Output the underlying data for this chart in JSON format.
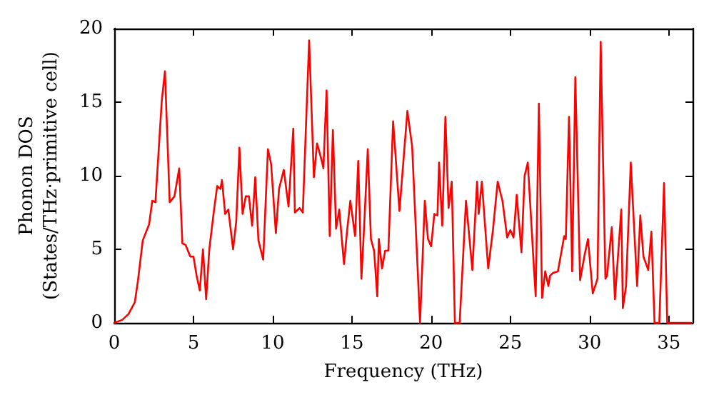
{
  "chart_data": {
    "type": "line",
    "xlabel": "Frequency (THz)",
    "ylabel": "Phonon DOS\n(States/THz·primitive cell)",
    "xlim": [
      0,
      36.5
    ],
    "xticks": [
      0,
      5,
      10,
      15,
      20,
      25,
      30,
      35
    ],
    "ylim": [
      0,
      20
    ],
    "yticks": [
      0,
      5,
      10,
      15,
      20
    ],
    "grid": false,
    "marker": "none",
    "line_style": "solid",
    "series": [
      {
        "color": "#ff0000",
        "x": [
          0,
          0.5,
          0.9,
          1.3,
          1.5,
          1.8,
          2.2,
          2.4,
          2.6,
          3.0,
          3.2,
          3.5,
          3.8,
          4.1,
          4.3,
          4.5,
          4.8,
          5.0,
          5.2,
          5.4,
          5.6,
          5.8,
          6.0,
          6.3,
          6.5,
          6.7,
          6.8,
          7.0,
          7.2,
          7.5,
          7.7,
          7.9,
          8.1,
          8.3,
          8.5,
          8.7,
          8.9,
          9.1,
          9.4,
          9.7,
          9.9,
          10.2,
          10.4,
          10.7,
          11.0,
          11.3,
          11.4,
          11.7,
          11.9,
          12.3,
          12.6,
          12.8,
          13.1,
          13.2,
          13.4,
          13.6,
          13.8,
          14.0,
          14.2,
          14.5,
          14.7,
          14.9,
          15.2,
          15.4,
          15.6,
          15.8,
          16.0,
          16.2,
          16.4,
          16.6,
          16.7,
          16.9,
          17.1,
          17.3,
          17.6,
          18.0,
          18.5,
          18.8,
          19.3,
          19.6,
          19.8,
          20.0,
          20.2,
          20.4,
          20.5,
          20.7,
          20.9,
          21.1,
          21.3,
          21.5,
          21.8,
          22.2,
          22.6,
          22.9,
          23.0,
          23.2,
          23.6,
          23.9,
          24.2,
          24.5,
          24.8,
          25.0,
          25.2,
          25.4,
          25.7,
          25.9,
          26.1,
          26.5,
          26.6,
          26.8,
          27.0,
          27.2,
          27.4,
          27.5,
          27.7,
          28.0,
          28.4,
          28.5,
          28.7,
          28.9,
          29.1,
          29.4,
          29.7,
          29.9,
          30.2,
          30.5,
          30.7,
          31.0,
          31.1,
          31.4,
          31.6,
          32.0,
          32.1,
          32.3,
          32.6,
          33.0,
          33.2,
          33.4,
          33.7,
          33.9,
          34.1,
          34.4,
          34.7,
          34.9,
          36.4
        ],
        "values": [
          0,
          0.2,
          0.6,
          1.4,
          2.9,
          5.6,
          6.7,
          8.3,
          8.2,
          15.1,
          17.1,
          8.2,
          8.6,
          10.5,
          5.4,
          5.3,
          4.5,
          4.5,
          3.2,
          2.2,
          5.0,
          1.6,
          5.0,
          7.7,
          9.3,
          9.1,
          9.7,
          7.4,
          7.7,
          5.0,
          6.9,
          11.9,
          7.4,
          8.6,
          8.6,
          6.6,
          9.9,
          5.6,
          4.3,
          11.8,
          10.8,
          6.1,
          9.1,
          10.4,
          7.9,
          13.2,
          7.5,
          7.8,
          7.5,
          19.2,
          9.9,
          12.2,
          11.0,
          10.5,
          15.8,
          5.9,
          13.1,
          6.4,
          7.7,
          4.0,
          6.3,
          8.3,
          5.9,
          11.0,
          3.0,
          7.2,
          11.8,
          5.7,
          4.9,
          1.8,
          5.7,
          3.7,
          4.9,
          4.9,
          13.7,
          7.6,
          14.4,
          12.0,
          0,
          8.3,
          5.7,
          5.2,
          7.4,
          7.3,
          10.9,
          6.6,
          14.0,
          7.8,
          9.6,
          0,
          0,
          8.3,
          3.6,
          9.6,
          7.4,
          9.6,
          3.7,
          6.3,
          9.6,
          8.3,
          5.8,
          6.3,
          5.8,
          8.7,
          4.8,
          10.0,
          10.9,
          3.5,
          1.8,
          14.9,
          1.7,
          3.5,
          2.5,
          3.2,
          3.4,
          3.5,
          5.9,
          5.7,
          14.0,
          3.5,
          16.7,
          2.9,
          4.7,
          5.7,
          2.0,
          3.0,
          19.1,
          3.0,
          3.2,
          6.5,
          1.6,
          7.7,
          1.0,
          2.5,
          10.9,
          2.5,
          7.3,
          4.5,
          3.6,
          6.2,
          0,
          0,
          9.5,
          0,
          0
        ]
      }
    ]
  }
}
